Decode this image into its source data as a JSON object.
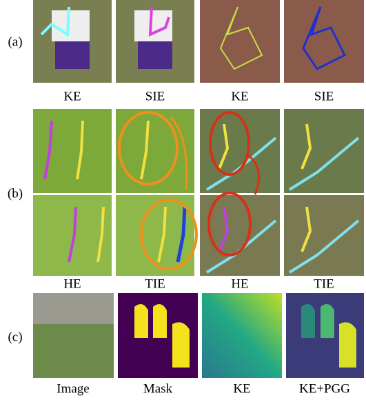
{
  "rows": [
    {
      "label": "(a)",
      "captions": [
        "KE",
        "SIE",
        "KE",
        "SIE"
      ]
    },
    {
      "label": "(b)",
      "captions": [
        "HE",
        "TIE",
        "HE",
        "TIE"
      ]
    },
    {
      "label": "(c)",
      "captions": [
        "Image",
        "Mask",
        "KE",
        "KE+PGG"
      ]
    }
  ]
}
